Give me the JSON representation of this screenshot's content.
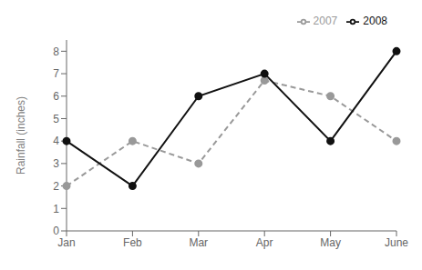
{
  "chart_data": {
    "type": "line",
    "categories": [
      "Jan",
      "Feb",
      "Mar",
      "Apr",
      "May",
      "June"
    ],
    "series": [
      {
        "name": "2007",
        "color": "#999999",
        "values": [
          2,
          4,
          3,
          6.7,
          6,
          4
        ],
        "line_style": "dashed",
        "marker": "circle"
      },
      {
        "name": "2008",
        "color": "#111111",
        "values": [
          4,
          2,
          6,
          7,
          4,
          8
        ],
        "line_style": "solid",
        "marker": "circle"
      }
    ],
    "ylabel": "Rainfall (inches)",
    "ylim": [
      0,
      8.5
    ],
    "yticks": [
      0,
      1,
      2,
      3,
      4,
      5,
      6,
      7,
      8
    ],
    "grid": false,
    "legend": "upper right"
  }
}
